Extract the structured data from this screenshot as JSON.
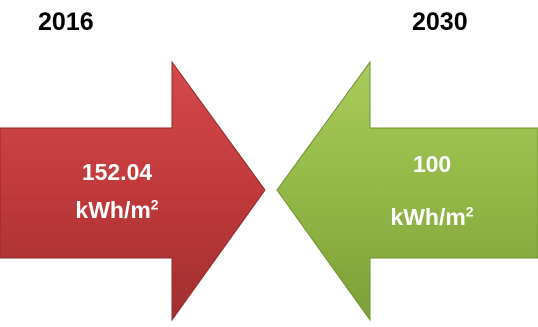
{
  "left": {
    "year": "2016",
    "value": "152.04",
    "unit": "kWh/m",
    "unit_exponent": "2",
    "color": "#c0393b"
  },
  "right": {
    "year": "2030",
    "value": "100",
    "unit": "kWh/m",
    "unit_exponent": "2",
    "color": "#93b846"
  }
}
